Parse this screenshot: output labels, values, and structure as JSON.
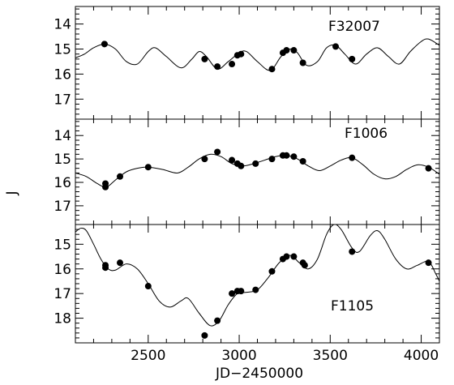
{
  "chart_data": {
    "type": "scatter",
    "xlabel": "JD−2450000",
    "ylabel": "J",
    "xlim": [
      2100,
      4100
    ],
    "xticks": [
      2500,
      3000,
      3500,
      4000
    ],
    "grid": false,
    "panels": [
      {
        "label": "F32007",
        "ylim": [
          17.8,
          13.3
        ],
        "yticks": [
          14,
          15,
          16,
          17
        ],
        "points": [
          {
            "x": 2260,
            "y": 14.8
          },
          {
            "x": 2810,
            "y": 15.4
          },
          {
            "x": 2880,
            "y": 15.7
          },
          {
            "x": 2960,
            "y": 15.6
          },
          {
            "x": 2990,
            "y": 15.25
          },
          {
            "x": 3010,
            "y": 15.2
          },
          {
            "x": 3180,
            "y": 15.8
          },
          {
            "x": 3240,
            "y": 15.15
          },
          {
            "x": 3260,
            "y": 15.05
          },
          {
            "x": 3300,
            "y": 15.05
          },
          {
            "x": 3350,
            "y": 15.55
          },
          {
            "x": 3530,
            "y": 14.9
          },
          {
            "x": 3620,
            "y": 15.4
          }
        ],
        "model": [
          {
            "x": 2100,
            "y": 15.35
          },
          {
            "x": 2150,
            "y": 15.2
          },
          {
            "x": 2200,
            "y": 14.95
          },
          {
            "x": 2260,
            "y": 14.8
          },
          {
            "x": 2320,
            "y": 15.0
          },
          {
            "x": 2380,
            "y": 15.5
          },
          {
            "x": 2440,
            "y": 15.6
          },
          {
            "x": 2500,
            "y": 15.1
          },
          {
            "x": 2540,
            "y": 14.95
          },
          {
            "x": 2600,
            "y": 15.3
          },
          {
            "x": 2680,
            "y": 15.75
          },
          {
            "x": 2740,
            "y": 15.4
          },
          {
            "x": 2780,
            "y": 15.1
          },
          {
            "x": 2820,
            "y": 15.3
          },
          {
            "x": 2880,
            "y": 15.8
          },
          {
            "x": 2940,
            "y": 15.5
          },
          {
            "x": 3000,
            "y": 15.15
          },
          {
            "x": 3040,
            "y": 15.1
          },
          {
            "x": 3100,
            "y": 15.5
          },
          {
            "x": 3170,
            "y": 15.85
          },
          {
            "x": 3230,
            "y": 15.3
          },
          {
            "x": 3280,
            "y": 15.0
          },
          {
            "x": 3320,
            "y": 15.15
          },
          {
            "x": 3370,
            "y": 15.65
          },
          {
            "x": 3430,
            "y": 15.5
          },
          {
            "x": 3480,
            "y": 14.95
          },
          {
            "x": 3530,
            "y": 14.85
          },
          {
            "x": 3580,
            "y": 15.2
          },
          {
            "x": 3640,
            "y": 15.6
          },
          {
            "x": 3700,
            "y": 15.2
          },
          {
            "x": 3760,
            "y": 14.95
          },
          {
            "x": 3820,
            "y": 15.3
          },
          {
            "x": 3880,
            "y": 15.6
          },
          {
            "x": 3940,
            "y": 15.1
          },
          {
            "x": 4000,
            "y": 14.7
          },
          {
            "x": 4040,
            "y": 14.6
          },
          {
            "x": 4100,
            "y": 14.85
          }
        ]
      },
      {
        "label": "F1006",
        "ylim": [
          17.8,
          13.3
        ],
        "yticks": [
          14,
          15,
          16,
          17
        ],
        "points": [
          {
            "x": 2265,
            "y": 16.05
          },
          {
            "x": 2265,
            "y": 16.2
          },
          {
            "x": 2345,
            "y": 15.75
          },
          {
            "x": 2500,
            "y": 15.35
          },
          {
            "x": 2810,
            "y": 15.0
          },
          {
            "x": 2880,
            "y": 14.7
          },
          {
            "x": 2960,
            "y": 15.05
          },
          {
            "x": 2990,
            "y": 15.2
          },
          {
            "x": 3010,
            "y": 15.3
          },
          {
            "x": 3090,
            "y": 15.2
          },
          {
            "x": 3180,
            "y": 15.0
          },
          {
            "x": 3240,
            "y": 14.85
          },
          {
            "x": 3260,
            "y": 14.85
          },
          {
            "x": 3300,
            "y": 14.9
          },
          {
            "x": 3350,
            "y": 15.1
          },
          {
            "x": 3620,
            "y": 14.95
          },
          {
            "x": 4040,
            "y": 15.4
          }
        ],
        "model": [
          {
            "x": 2100,
            "y": 15.6
          },
          {
            "x": 2160,
            "y": 15.75
          },
          {
            "x": 2220,
            "y": 16.05
          },
          {
            "x": 2270,
            "y": 16.2
          },
          {
            "x": 2320,
            "y": 15.9
          },
          {
            "x": 2380,
            "y": 15.55
          },
          {
            "x": 2440,
            "y": 15.4
          },
          {
            "x": 2500,
            "y": 15.35
          },
          {
            "x": 2580,
            "y": 15.45
          },
          {
            "x": 2660,
            "y": 15.6
          },
          {
            "x": 2720,
            "y": 15.35
          },
          {
            "x": 2780,
            "y": 15.0
          },
          {
            "x": 2840,
            "y": 14.8
          },
          {
            "x": 2900,
            "y": 14.9
          },
          {
            "x": 2960,
            "y": 15.2
          },
          {
            "x": 3020,
            "y": 15.3
          },
          {
            "x": 3080,
            "y": 15.2
          },
          {
            "x": 3140,
            "y": 15.05
          },
          {
            "x": 3200,
            "y": 14.9
          },
          {
            "x": 3260,
            "y": 14.85
          },
          {
            "x": 3320,
            "y": 15.0
          },
          {
            "x": 3380,
            "y": 15.3
          },
          {
            "x": 3440,
            "y": 15.5
          },
          {
            "x": 3500,
            "y": 15.3
          },
          {
            "x": 3560,
            "y": 15.05
          },
          {
            "x": 3620,
            "y": 14.95
          },
          {
            "x": 3680,
            "y": 15.25
          },
          {
            "x": 3740,
            "y": 15.65
          },
          {
            "x": 3800,
            "y": 15.85
          },
          {
            "x": 3860,
            "y": 15.75
          },
          {
            "x": 3920,
            "y": 15.45
          },
          {
            "x": 3980,
            "y": 15.25
          },
          {
            "x": 4040,
            "y": 15.35
          },
          {
            "x": 4100,
            "y": 15.65
          }
        ]
      },
      {
        "label": "F1105",
        "ylim": [
          19.0,
          14.2
        ],
        "yticks": [
          15,
          16,
          17,
          18
        ],
        "points": [
          {
            "x": 2265,
            "y": 15.85
          },
          {
            "x": 2265,
            "y": 15.95
          },
          {
            "x": 2345,
            "y": 15.75
          },
          {
            "x": 2500,
            "y": 16.7
          },
          {
            "x": 2810,
            "y": 18.7
          },
          {
            "x": 2880,
            "y": 18.1
          },
          {
            "x": 2960,
            "y": 17.0
          },
          {
            "x": 2990,
            "y": 16.9
          },
          {
            "x": 3010,
            "y": 16.9
          },
          {
            "x": 3090,
            "y": 16.85
          },
          {
            "x": 3180,
            "y": 16.1
          },
          {
            "x": 3240,
            "y": 15.6
          },
          {
            "x": 3260,
            "y": 15.5
          },
          {
            "x": 3300,
            "y": 15.5
          },
          {
            "x": 3350,
            "y": 15.75
          },
          {
            "x": 3360,
            "y": 15.85
          },
          {
            "x": 3620,
            "y": 15.3
          },
          {
            "x": 4040,
            "y": 15.75
          }
        ],
        "model": [
          {
            "x": 2100,
            "y": 14.5
          },
          {
            "x": 2130,
            "y": 14.35
          },
          {
            "x": 2160,
            "y": 14.45
          },
          {
            "x": 2200,
            "y": 15.0
          },
          {
            "x": 2240,
            "y": 15.6
          },
          {
            "x": 2280,
            "y": 16.0
          },
          {
            "x": 2320,
            "y": 16.05
          },
          {
            "x": 2380,
            "y": 15.8
          },
          {
            "x": 2440,
            "y": 16.0
          },
          {
            "x": 2500,
            "y": 16.6
          },
          {
            "x": 2560,
            "y": 17.3
          },
          {
            "x": 2620,
            "y": 17.55
          },
          {
            "x": 2680,
            "y": 17.3
          },
          {
            "x": 2720,
            "y": 17.2
          },
          {
            "x": 2780,
            "y": 17.8
          },
          {
            "x": 2840,
            "y": 18.3
          },
          {
            "x": 2890,
            "y": 18.1
          },
          {
            "x": 2940,
            "y": 17.45
          },
          {
            "x": 2990,
            "y": 17.0
          },
          {
            "x": 3040,
            "y": 16.95
          },
          {
            "x": 3100,
            "y": 16.85
          },
          {
            "x": 3160,
            "y": 16.35
          },
          {
            "x": 3220,
            "y": 15.75
          },
          {
            "x": 3280,
            "y": 15.45
          },
          {
            "x": 3330,
            "y": 15.75
          },
          {
            "x": 3380,
            "y": 16.0
          },
          {
            "x": 3430,
            "y": 15.6
          },
          {
            "x": 3480,
            "y": 14.6
          },
          {
            "x": 3520,
            "y": 14.2
          },
          {
            "x": 3560,
            "y": 14.4
          },
          {
            "x": 3620,
            "y": 15.15
          },
          {
            "x": 3660,
            "y": 15.3
          },
          {
            "x": 3720,
            "y": 14.65
          },
          {
            "x": 3760,
            "y": 14.45
          },
          {
            "x": 3800,
            "y": 14.8
          },
          {
            "x": 3860,
            "y": 15.6
          },
          {
            "x": 3920,
            "y": 16.0
          },
          {
            "x": 3980,
            "y": 15.85
          },
          {
            "x": 4040,
            "y": 15.7
          },
          {
            "x": 4080,
            "y": 16.2
          },
          {
            "x": 4100,
            "y": 16.5
          }
        ]
      }
    ]
  }
}
